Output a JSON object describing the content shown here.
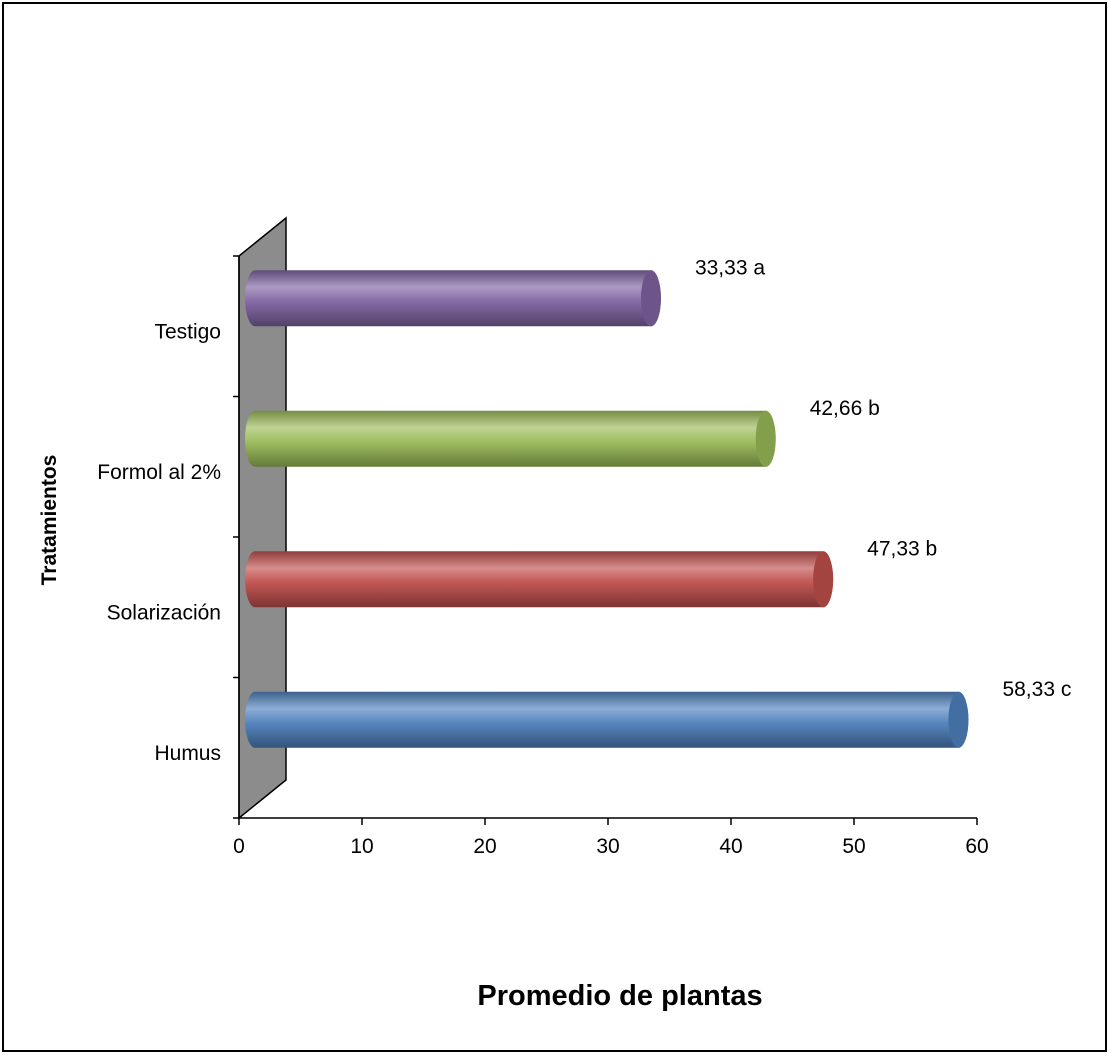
{
  "chart_data": {
    "type": "bar",
    "orientation": "horizontal",
    "categories": [
      "Humus",
      "Solarización",
      "Formol al 2%",
      "Testigo"
    ],
    "values": [
      58.33,
      47.33,
      42.66,
      33.33
    ],
    "data_labels": [
      "58,33 c",
      "47,33 b",
      "42,66 b",
      "33,33 a"
    ],
    "colors": [
      "#4f81bd",
      "#c0504d",
      "#9bbb59",
      "#8064a2"
    ],
    "title": "",
    "xlabel": "Promedio de plantas",
    "ylabel": "Tratamientos",
    "xlim": [
      0,
      60
    ],
    "xticks": [
      "0",
      "10",
      "20",
      "30",
      "40",
      "50",
      "60"
    ],
    "grid": false,
    "legend": "none",
    "style": "3d-cylinder"
  }
}
